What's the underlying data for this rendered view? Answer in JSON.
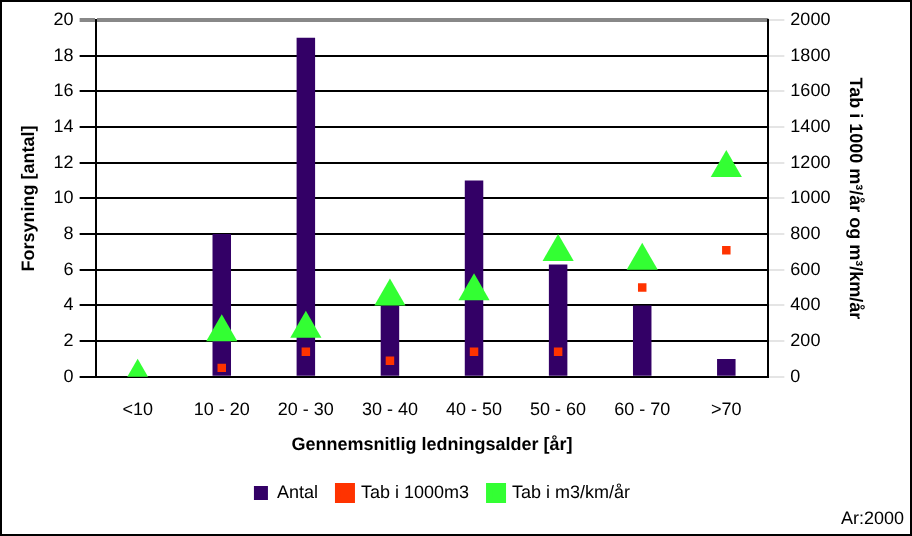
{
  "chart_data": {
    "type": "bar",
    "xlabel": "Gennemsnitlig ledningsalder [år]",
    "ylabel": "Forsyning [antal]",
    "y2label": "Tab i 1000 m³/år og m³/km/år",
    "categories": [
      "<10",
      "10 - 20",
      "20 - 30",
      "30 - 40",
      "40 - 50",
      "50 - 60",
      "60 - 70",
      ">70"
    ],
    "series": [
      {
        "name": "Antal",
        "color": "#330066",
        "values": [
          0,
          8,
          19,
          4,
          11,
          6.3,
          4,
          1
        ]
      },
      {
        "name": "Tab i 1000m3",
        "type": "scatter",
        "axis": "y2",
        "marker": "square",
        "color": "#ff3300",
        "values": [
          null,
          50,
          140,
          90,
          140,
          140,
          500,
          710
        ]
      },
      {
        "name": "Tab i m3/km/år",
        "type": "scatter",
        "axis": "y2",
        "marker": "triangle",
        "color": "#33ff33",
        "values": [
          0,
          250,
          270,
          450,
          480,
          700,
          650,
          1170
        ]
      }
    ],
    "ylim": [
      0,
      20
    ],
    "yticks": [
      0,
      2,
      4,
      6,
      8,
      10,
      12,
      14,
      16,
      18,
      20
    ],
    "y2lim": [
      0,
      2000
    ],
    "y2ticks": [
      0,
      200,
      400,
      600,
      800,
      1000,
      1200,
      1400,
      1600,
      1800,
      2000
    ],
    "grid": "y",
    "legend": "bottom",
    "annotations": [
      "Ar:2000"
    ]
  }
}
